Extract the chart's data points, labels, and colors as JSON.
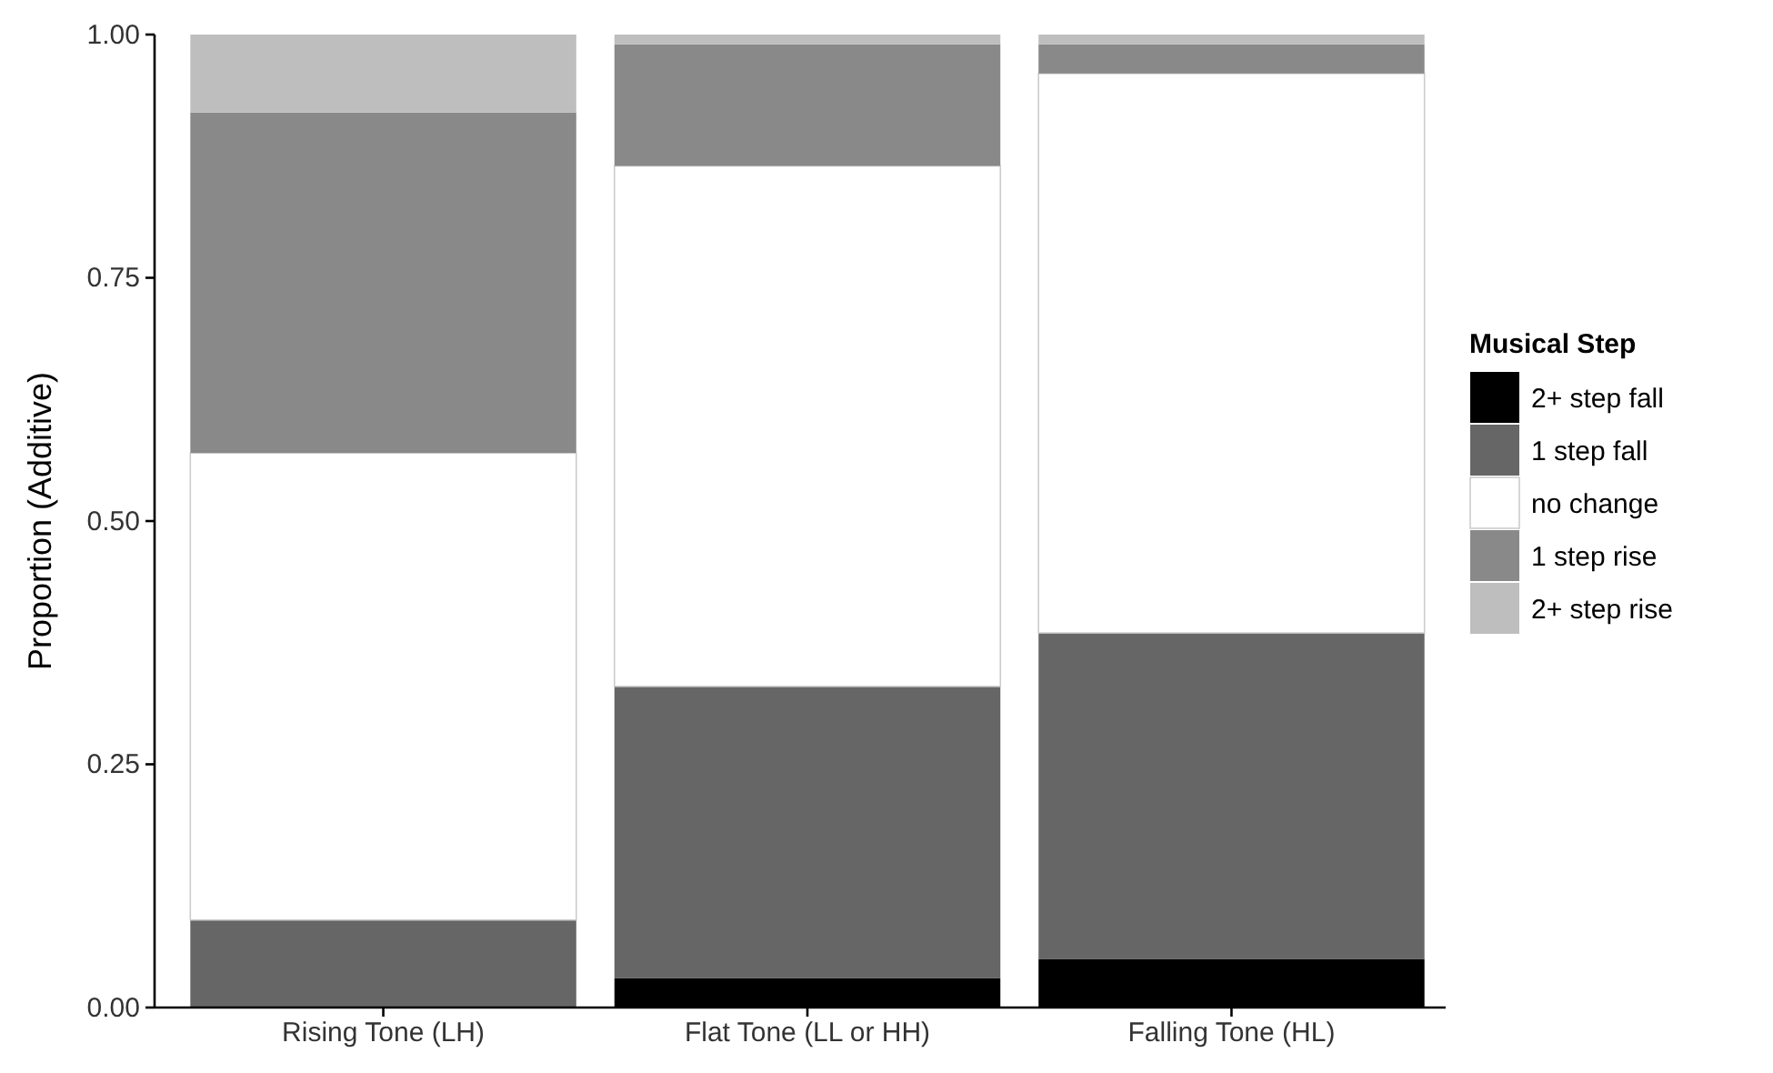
{
  "chart_data": {
    "type": "bar",
    "stacked": true,
    "ylabel": "Proportion (Additive)",
    "legend_title": "Musical Step",
    "legend": "right",
    "categories": [
      "Rising Tone (LH)",
      "Flat Tone (LL or HH)",
      "Falling Tone (HL)"
    ],
    "series": [
      {
        "name": "2+ step fall",
        "color": "#000000",
        "values": [
          0,
          0.03,
          0.05
        ]
      },
      {
        "name": "1 step fall",
        "color": "#666666",
        "values": [
          0.09,
          0.3,
          0.335
        ]
      },
      {
        "name": "no change",
        "color": "#ffffff",
        "values": [
          0.48,
          0.535,
          0.575
        ]
      },
      {
        "name": "1 step rise",
        "color": "#898989",
        "values": [
          0.35,
          0.125,
          0.03
        ]
      },
      {
        "name": "2+ step rise",
        "color": "#bebebe",
        "values": [
          0.08,
          0.01,
          0.01
        ]
      }
    ],
    "ylim": [
      0,
      1
    ],
    "yticks": [
      {
        "value": 0,
        "label": "0.00"
      },
      {
        "value": 0.25,
        "label": "0.25"
      },
      {
        "value": 0.5,
        "label": "0.50"
      },
      {
        "value": 0.75,
        "label": "0.75"
      },
      {
        "value": 1,
        "label": "1.00"
      }
    ]
  }
}
